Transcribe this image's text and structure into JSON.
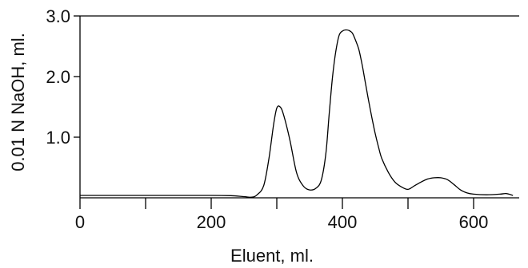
{
  "chart_data": {
    "type": "line",
    "title": "",
    "xlabel": "Eluent, ml.",
    "ylabel": "0.01 N NaOH, ml.",
    "xlim": [
      0,
      670
    ],
    "ylim": [
      0,
      3.0
    ],
    "grid": false,
    "legend": "none",
    "x_ticks": [
      0,
      100,
      200,
      300,
      400,
      500,
      600
    ],
    "x_tick_labels": [
      "0",
      "",
      "200",
      "",
      "400",
      "",
      "600"
    ],
    "y_ticks": [
      1.0,
      2.0,
      3.0
    ],
    "y_tick_labels": [
      "1.0",
      "2.0",
      "3.0"
    ],
    "series": [
      {
        "x": [
          0,
          50,
          100,
          150,
          200,
          230,
          250,
          262,
          270,
          280,
          288,
          295,
          300,
          305,
          310,
          320,
          330,
          340,
          350,
          360,
          368,
          375,
          380,
          385,
          390,
          395,
          400,
          405,
          410,
          415,
          420,
          425,
          430,
          435,
          440,
          445,
          450,
          455,
          460,
          470,
          480,
          490,
          500,
          510,
          520,
          530,
          540,
          550,
          560,
          570,
          580,
          590,
          600,
          620,
          640,
          650,
          660
        ],
        "y": [
          0.04,
          0.04,
          0.04,
          0.04,
          0.04,
          0.035,
          0.02,
          0.01,
          0.05,
          0.2,
          0.65,
          1.2,
          1.48,
          1.5,
          1.38,
          0.95,
          0.42,
          0.2,
          0.13,
          0.16,
          0.3,
          0.75,
          1.4,
          2.0,
          2.42,
          2.68,
          2.75,
          2.77,
          2.76,
          2.72,
          2.6,
          2.45,
          2.2,
          1.9,
          1.6,
          1.32,
          1.06,
          0.84,
          0.65,
          0.42,
          0.26,
          0.18,
          0.14,
          0.2,
          0.26,
          0.31,
          0.33,
          0.33,
          0.3,
          0.22,
          0.13,
          0.08,
          0.06,
          0.05,
          0.06,
          0.07,
          0.04
        ]
      }
    ]
  }
}
